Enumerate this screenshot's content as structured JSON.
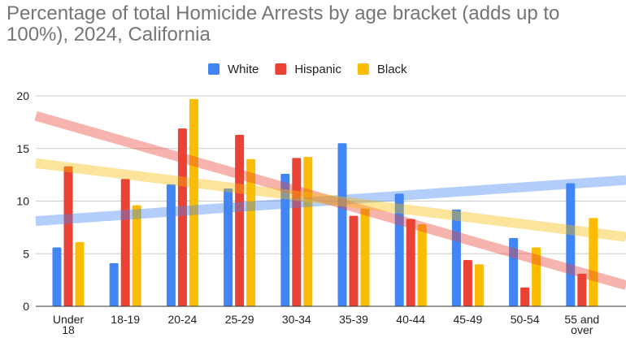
{
  "chart_data": {
    "type": "bar",
    "title": "Percentage of total Homicide Arrests by age bracket (adds up to 100%), 2024, California",
    "categories": [
      [
        "Under",
        "18"
      ],
      [
        "18-19"
      ],
      [
        "20-24"
      ],
      [
        "25-29"
      ],
      [
        "30-34"
      ],
      [
        "35-39"
      ],
      [
        "40-44"
      ],
      [
        "45-49"
      ],
      [
        "50-54"
      ],
      [
        "55 and",
        "over"
      ]
    ],
    "series": [
      {
        "name": "White",
        "color": "#4285f4",
        "values": [
          5.6,
          4.1,
          11.6,
          11.2,
          12.6,
          15.5,
          10.7,
          9.2,
          6.5,
          11.7
        ]
      },
      {
        "name": "Hispanic",
        "color": "#ea4335",
        "values": [
          13.3,
          12.1,
          16.9,
          16.3,
          14.1,
          8.6,
          8.3,
          4.4,
          1.8,
          3.1
        ]
      },
      {
        "name": "Black",
        "color": "#fbbc04",
        "values": [
          6.1,
          9.6,
          19.7,
          14.0,
          14.2,
          9.3,
          7.8,
          4.0,
          5.6,
          8.4
        ]
      }
    ],
    "trendlines": [
      {
        "series": "White",
        "start": 8.1,
        "end": 12.0
      },
      {
        "series": "Hispanic",
        "start": 18.1,
        "end": 2.0
      },
      {
        "series": "Black",
        "start": 13.6,
        "end": 6.6
      }
    ],
    "y_ticks": [
      "0",
      "5",
      "10",
      "15",
      "20"
    ],
    "ylim": [
      0,
      21
    ],
    "xlabel": "",
    "ylabel": "",
    "legend_position": "top-center",
    "grid": true
  }
}
